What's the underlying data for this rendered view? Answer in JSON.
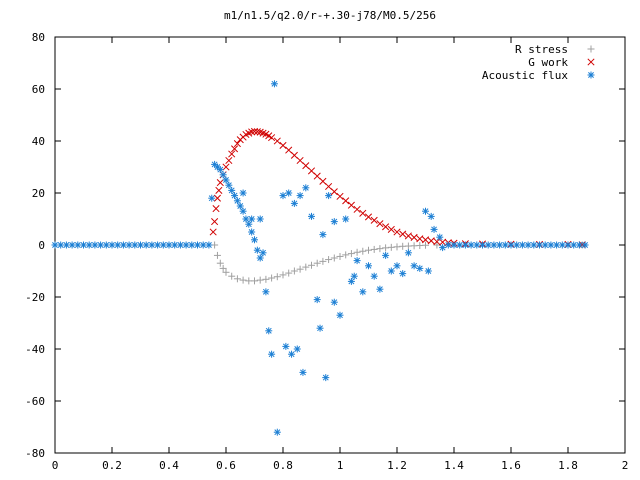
{
  "chart_data": {
    "type": "scatter",
    "title": "m1/n1.5/q2.0/r-+.30-j78/M0.5/256",
    "xlabel": "",
    "ylabel": "",
    "xlim": [
      0,
      2
    ],
    "ylim": [
      -80,
      80
    ],
    "x_ticks": [
      "0",
      "0.2",
      "0.4",
      "0.6",
      "0.8",
      "1",
      "1.2",
      "1.4",
      "1.6",
      "1.8",
      "2"
    ],
    "y_ticks": [
      "-80",
      "-60",
      "-40",
      "-20",
      "0",
      "20",
      "40",
      "60",
      "80"
    ],
    "legend_position": "top-right",
    "series": [
      {
        "name": "R stress",
        "marker": "plus",
        "color": "#a0a0a0",
        "points": [
          [
            0.56,
            0
          ],
          [
            0.57,
            -4
          ],
          [
            0.58,
            -7
          ],
          [
            0.59,
            -9
          ],
          [
            0.6,
            -10.5
          ],
          [
            0.62,
            -12
          ],
          [
            0.64,
            -13
          ],
          [
            0.66,
            -13.5
          ],
          [
            0.68,
            -13.8
          ],
          [
            0.7,
            -13.8
          ],
          [
            0.72,
            -13.5
          ],
          [
            0.74,
            -13.2
          ],
          [
            0.76,
            -12.7
          ],
          [
            0.78,
            -12.2
          ],
          [
            0.8,
            -11.5
          ],
          [
            0.82,
            -10.8
          ],
          [
            0.84,
            -10
          ],
          [
            0.86,
            -9.3
          ],
          [
            0.88,
            -8.5
          ],
          [
            0.9,
            -7.8
          ],
          [
            0.92,
            -7
          ],
          [
            0.94,
            -6.3
          ],
          [
            0.96,
            -5.6
          ],
          [
            0.98,
            -5
          ],
          [
            1.0,
            -4.4
          ],
          [
            1.02,
            -3.8
          ],
          [
            1.04,
            -3.3
          ],
          [
            1.06,
            -2.8
          ],
          [
            1.08,
            -2.4
          ],
          [
            1.1,
            -2
          ],
          [
            1.12,
            -1.7
          ],
          [
            1.14,
            -1.4
          ],
          [
            1.16,
            -1.1
          ],
          [
            1.18,
            -0.9
          ],
          [
            1.2,
            -0.7
          ],
          [
            1.22,
            -0.5
          ],
          [
            1.24,
            -0.4
          ],
          [
            1.26,
            -0.3
          ],
          [
            1.28,
            -0.2
          ],
          [
            1.3,
            -0.1
          ],
          [
            1.34,
            0
          ],
          [
            1.4,
            0
          ],
          [
            1.5,
            0
          ],
          [
            1.6,
            0
          ],
          [
            1.7,
            0
          ],
          [
            1.8,
            0
          ],
          [
            1.85,
            0
          ]
        ]
      },
      {
        "name": "G work",
        "marker": "x",
        "color": "#d00000",
        "points": [
          [
            0.555,
            5
          ],
          [
            0.56,
            9
          ],
          [
            0.565,
            14
          ],
          [
            0.57,
            18
          ],
          [
            0.575,
            21
          ],
          [
            0.58,
            24
          ],
          [
            0.59,
            27
          ],
          [
            0.6,
            30
          ],
          [
            0.61,
            32.5
          ],
          [
            0.62,
            35
          ],
          [
            0.63,
            37
          ],
          [
            0.64,
            39
          ],
          [
            0.65,
            40.5
          ],
          [
            0.66,
            41.5
          ],
          [
            0.67,
            42.5
          ],
          [
            0.68,
            43
          ],
          [
            0.69,
            43.5
          ],
          [
            0.7,
            43.7
          ],
          [
            0.71,
            43.6
          ],
          [
            0.72,
            43.4
          ],
          [
            0.73,
            43
          ],
          [
            0.74,
            42.6
          ],
          [
            0.75,
            42
          ],
          [
            0.76,
            41.3
          ],
          [
            0.78,
            40
          ],
          [
            0.8,
            38.3
          ],
          [
            0.82,
            36.5
          ],
          [
            0.84,
            34.5
          ],
          [
            0.86,
            32.5
          ],
          [
            0.88,
            30.5
          ],
          [
            0.9,
            28.5
          ],
          [
            0.92,
            26.5
          ],
          [
            0.94,
            24.5
          ],
          [
            0.96,
            22.5
          ],
          [
            0.98,
            20.5
          ],
          [
            1.0,
            18.7
          ],
          [
            1.02,
            17
          ],
          [
            1.04,
            15.3
          ],
          [
            1.06,
            13.7
          ],
          [
            1.08,
            12.2
          ],
          [
            1.1,
            10.8
          ],
          [
            1.12,
            9.5
          ],
          [
            1.14,
            8.2
          ],
          [
            1.16,
            7
          ],
          [
            1.18,
            6
          ],
          [
            1.2,
            5
          ],
          [
            1.22,
            4.2
          ],
          [
            1.24,
            3.5
          ],
          [
            1.26,
            2.9
          ],
          [
            1.28,
            2.4
          ],
          [
            1.3,
            2
          ],
          [
            1.32,
            1.6
          ],
          [
            1.34,
            1.3
          ],
          [
            1.36,
            1.1
          ],
          [
            1.38,
            0.9
          ],
          [
            1.4,
            0.7
          ],
          [
            1.44,
            0.5
          ],
          [
            1.5,
            0.4
          ],
          [
            1.6,
            0.3
          ],
          [
            1.7,
            0.2
          ],
          [
            1.8,
            0.2
          ],
          [
            1.85,
            0.1
          ]
        ]
      },
      {
        "name": "Acoustic flux",
        "marker": "star",
        "color": "#1c7fd4",
        "points": [
          [
            0.0,
            0
          ],
          [
            0.02,
            0
          ],
          [
            0.04,
            0
          ],
          [
            0.06,
            0
          ],
          [
            0.08,
            0
          ],
          [
            0.1,
            0
          ],
          [
            0.12,
            0
          ],
          [
            0.14,
            0
          ],
          [
            0.16,
            0
          ],
          [
            0.18,
            0
          ],
          [
            0.2,
            0
          ],
          [
            0.22,
            0
          ],
          [
            0.24,
            0
          ],
          [
            0.26,
            0
          ],
          [
            0.28,
            0
          ],
          [
            0.3,
            0
          ],
          [
            0.32,
            0
          ],
          [
            0.34,
            0
          ],
          [
            0.36,
            0
          ],
          [
            0.38,
            0
          ],
          [
            0.4,
            0
          ],
          [
            0.42,
            0
          ],
          [
            0.44,
            0
          ],
          [
            0.46,
            0
          ],
          [
            0.48,
            0
          ],
          [
            0.5,
            0
          ],
          [
            0.52,
            0
          ],
          [
            0.54,
            0
          ],
          [
            0.55,
            18
          ],
          [
            0.56,
            31
          ],
          [
            0.57,
            30
          ],
          [
            0.58,
            29
          ],
          [
            0.59,
            27
          ],
          [
            0.6,
            25
          ],
          [
            0.61,
            23
          ],
          [
            0.62,
            21
          ],
          [
            0.63,
            19
          ],
          [
            0.64,
            17
          ],
          [
            0.65,
            15
          ],
          [
            0.66,
            13
          ],
          [
            0.67,
            10
          ],
          [
            0.68,
            8
          ],
          [
            0.69,
            5
          ],
          [
            0.7,
            2
          ],
          [
            0.71,
            -2
          ],
          [
            0.72,
            -5
          ],
          [
            0.66,
            20
          ],
          [
            0.69,
            10
          ],
          [
            0.72,
            10
          ],
          [
            0.73,
            -3
          ],
          [
            0.74,
            -18
          ],
          [
            0.75,
            -33
          ],
          [
            0.76,
            -42
          ],
          [
            0.77,
            62
          ],
          [
            0.78,
            -72
          ],
          [
            0.8,
            19
          ],
          [
            0.81,
            -39
          ],
          [
            0.83,
            -42
          ],
          [
            0.85,
            -40
          ],
          [
            0.82,
            20
          ],
          [
            0.84,
            16
          ],
          [
            0.86,
            19
          ],
          [
            0.88,
            22
          ],
          [
            0.9,
            11
          ],
          [
            0.87,
            -49
          ],
          [
            0.92,
            -21
          ],
          [
            0.93,
            -32
          ],
          [
            0.94,
            4
          ],
          [
            0.95,
            -51
          ],
          [
            0.96,
            19
          ],
          [
            0.98,
            -22
          ],
          [
            0.98,
            9
          ],
          [
            1.0,
            -27
          ],
          [
            1.02,
            10
          ],
          [
            1.04,
            -14
          ],
          [
            1.05,
            -12
          ],
          [
            1.06,
            -6
          ],
          [
            1.08,
            -18
          ],
          [
            1.1,
            -8
          ],
          [
            1.12,
            -12
          ],
          [
            1.14,
            -17
          ],
          [
            1.16,
            -4
          ],
          [
            1.18,
            -10
          ],
          [
            1.2,
            -8
          ],
          [
            1.22,
            -11
          ],
          [
            1.24,
            -3
          ],
          [
            1.26,
            -8
          ],
          [
            1.28,
            -9
          ],
          [
            1.3,
            13
          ],
          [
            1.31,
            -10
          ],
          [
            1.32,
            11
          ],
          [
            1.33,
            6
          ],
          [
            1.35,
            3
          ],
          [
            1.36,
            -1
          ],
          [
            1.38,
            0
          ],
          [
            1.4,
            0
          ],
          [
            1.42,
            0
          ],
          [
            1.44,
            0
          ],
          [
            1.46,
            0
          ],
          [
            1.48,
            0
          ],
          [
            1.5,
            0
          ],
          [
            1.52,
            0
          ],
          [
            1.54,
            0
          ],
          [
            1.56,
            0
          ],
          [
            1.58,
            0
          ],
          [
            1.6,
            0
          ],
          [
            1.62,
            0
          ],
          [
            1.64,
            0
          ],
          [
            1.66,
            0
          ],
          [
            1.68,
            0
          ],
          [
            1.7,
            0
          ],
          [
            1.72,
            0
          ],
          [
            1.74,
            0
          ],
          [
            1.76,
            0
          ],
          [
            1.78,
            0
          ],
          [
            1.8,
            0
          ],
          [
            1.82,
            0
          ],
          [
            1.84,
            0
          ],
          [
            1.86,
            0
          ]
        ]
      }
    ]
  }
}
